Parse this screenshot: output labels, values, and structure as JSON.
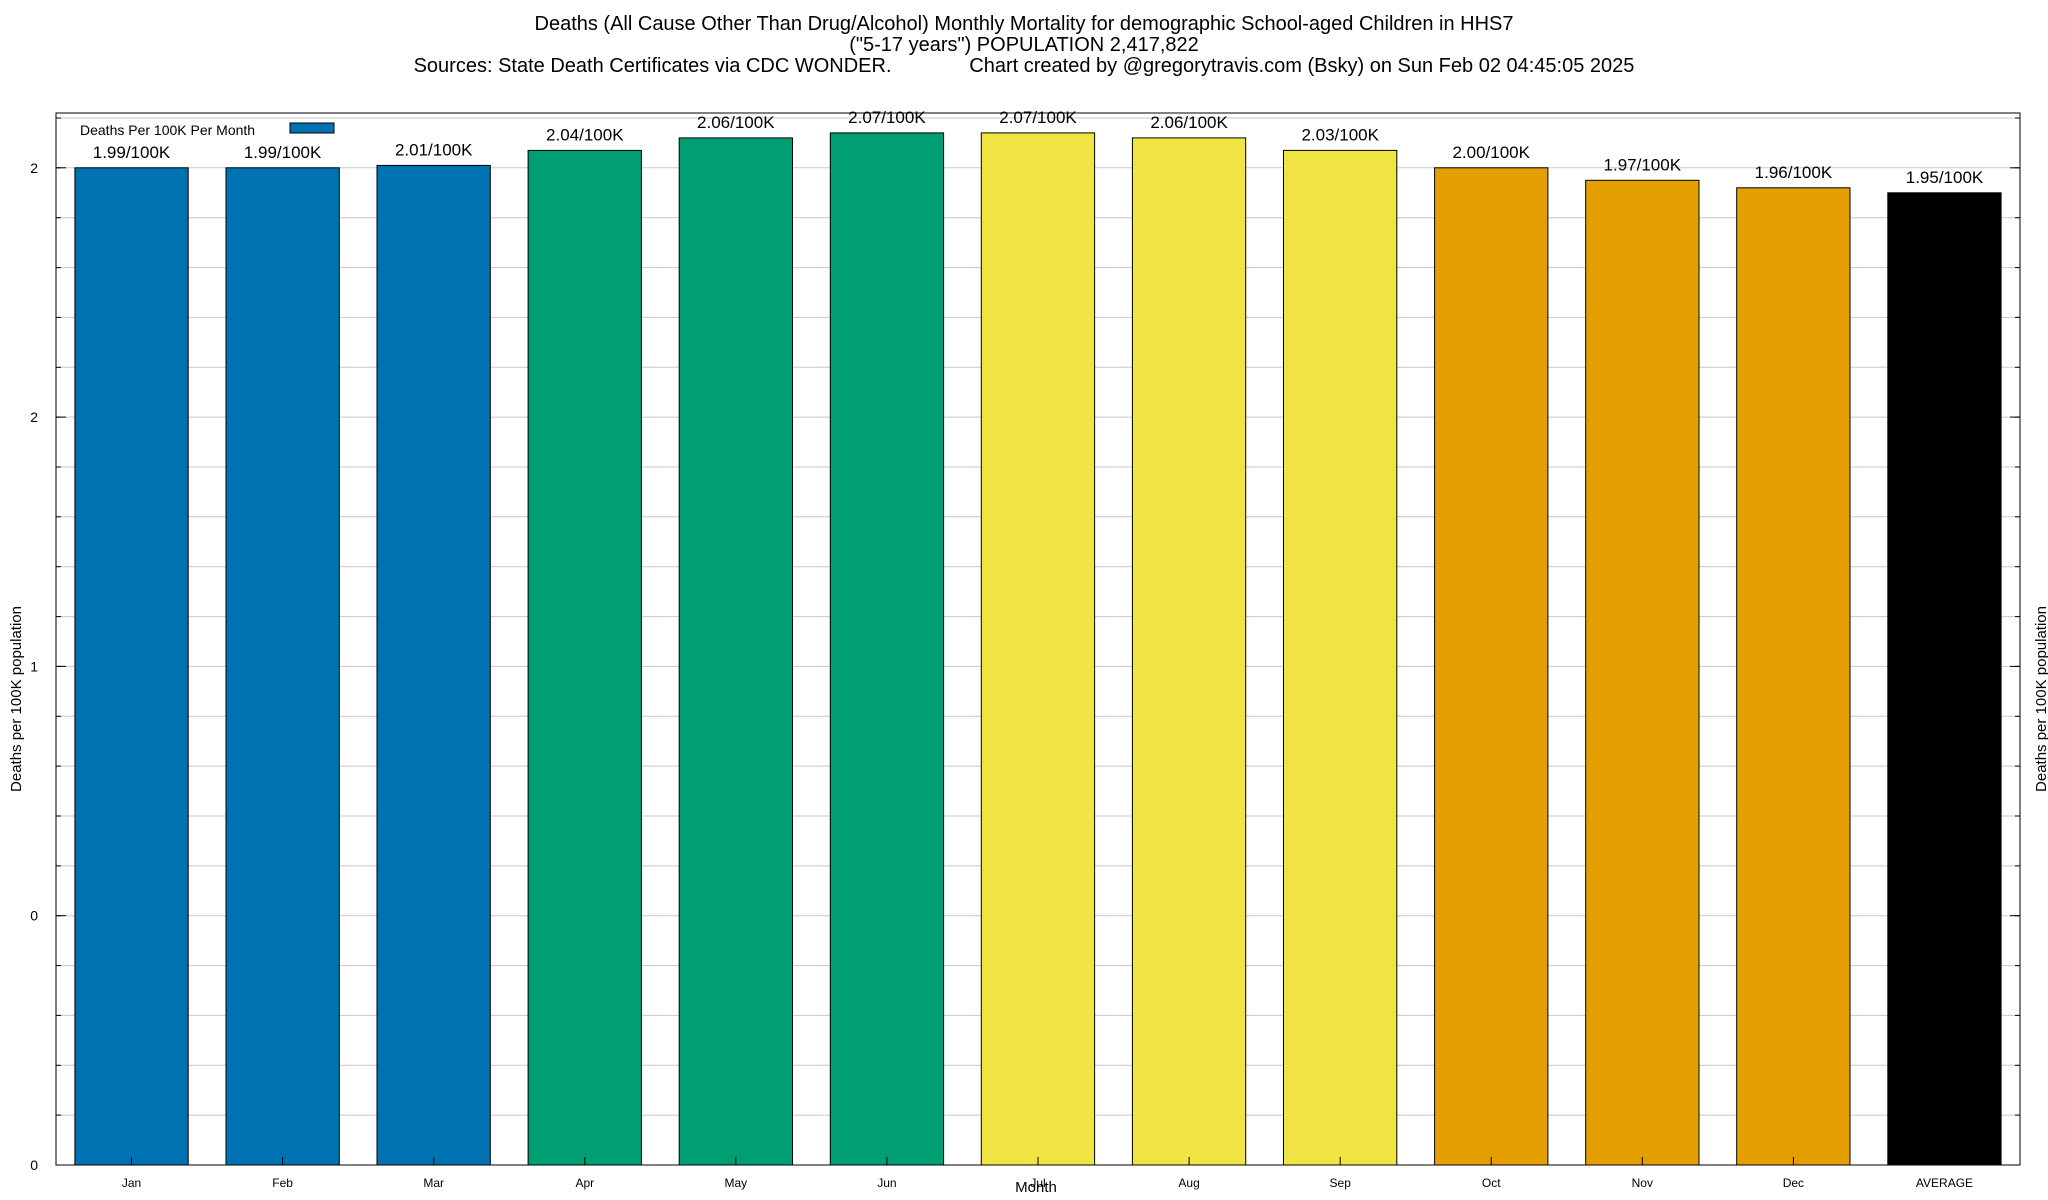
{
  "title": {
    "line1": "Deaths (All Cause Other Than Drug/Alcohol) Monthly Mortality for demographic School-aged Children in HHS7",
    "line2": "(\"5-17 years\") POPULATION 2,417,822",
    "line3": "Sources: State Death Certificates via CDC WONDER.              Chart created by @gregorytravis.com (Bsky) on Sun Feb 02 04:45:05 2025"
  },
  "chart_data": {
    "type": "bar",
    "xlabel": "Month",
    "ylabel": "Deaths per 100K population",
    "y2label": "Deaths per 100K population",
    "legend": {
      "label": "Deaths Per 100K Per Month",
      "placement": "top-left",
      "color": "#0072b2"
    },
    "ylim": [
      0,
      2.11
    ],
    "yticks": [
      {
        "value": 0,
        "label": "0"
      },
      {
        "value": 0.5,
        "label": "0"
      },
      {
        "value": 1.0,
        "label": "1"
      },
      {
        "value": 1.5,
        "label": "2"
      },
      {
        "value": 2.0,
        "label": "2"
      }
    ],
    "grid": true,
    "categories": [
      "Jan",
      "Feb",
      "Mar",
      "Apr",
      "May",
      "Jun",
      "Jul",
      "Aug",
      "Sep",
      "Oct",
      "Nov",
      "Dec",
      "AVERAGE"
    ],
    "values": [
      1.99,
      1.99,
      2.01,
      2.04,
      2.06,
      2.07,
      2.07,
      2.06,
      2.03,
      2.0,
      1.97,
      1.96,
      1.95
    ],
    "bar_heights": [
      2.0,
      2.0,
      2.005,
      2.035,
      2.06,
      2.07,
      2.07,
      2.06,
      2.035,
      2.0,
      1.975,
      1.96,
      1.95
    ],
    "labels": [
      "1.99/100K",
      "1.99/100K",
      "2.01/100K",
      "2.04/100K",
      "2.06/100K",
      "2.07/100K",
      "2.07/100K",
      "2.06/100K",
      "2.03/100K",
      "2.00/100K",
      "1.97/100K",
      "1.96/100K",
      "1.95/100K"
    ],
    "colors": [
      "#0072b2",
      "#0072b2",
      "#0072b2",
      "#009e73",
      "#009e73",
      "#009e73",
      "#f0e442",
      "#f0e442",
      "#f0e442",
      "#e69f00",
      "#e69f00",
      "#e69f00",
      "#000000"
    ]
  }
}
